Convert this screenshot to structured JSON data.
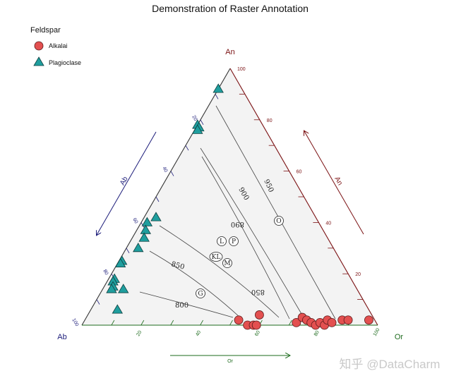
{
  "chart_data": {
    "type": "ternary-scatter",
    "title": "Demonstration of Raster Annotation",
    "legend": {
      "title": "Feldspar",
      "placement": "top-left",
      "entries": [
        {
          "name": "Alkalai",
          "marker": "circle",
          "color": "#e35050"
        },
        {
          "name": "Plagioclase",
          "marker": "triangle",
          "color": "#1f9e9e"
        }
      ]
    },
    "axes": {
      "top": {
        "label": "An",
        "color": "#7b1113",
        "ticks": [
          "20",
          "40",
          "60",
          "80",
          "100"
        ]
      },
      "left": {
        "label": "Ab",
        "color": "#1c1c7a",
        "ticks": [
          "20",
          "40",
          "60",
          "80",
          "100"
        ]
      },
      "right": {
        "label": "Or",
        "color": "#1e6b1e",
        "ticks": [
          "20",
          "40",
          "60",
          "80",
          "100"
        ]
      },
      "range": [
        0,
        100
      ]
    },
    "isotherm_labels": [
      "950",
      "900",
      "890",
      "850",
      "800",
      "850"
    ],
    "background_marks": [
      "L",
      "P",
      "KL",
      "M",
      "O",
      "G"
    ],
    "series": [
      {
        "name": "Plagioclase",
        "points": [
          {
            "an": 92,
            "ab": 8,
            "or": 0
          },
          {
            "an": 78,
            "ab": 22,
            "or": 0
          },
          {
            "an": 77,
            "ab": 22,
            "or": 1
          },
          {
            "an": 76,
            "ab": 23,
            "or": 1
          },
          {
            "an": 42,
            "ab": 54,
            "or": 4
          },
          {
            "an": 40,
            "ab": 58,
            "or": 2
          },
          {
            "an": 37,
            "ab": 60,
            "or": 3
          },
          {
            "an": 34,
            "ab": 62,
            "or": 4
          },
          {
            "an": 30,
            "ab": 66,
            "or": 4
          },
          {
            "an": 25,
            "ab": 74,
            "or": 1
          },
          {
            "an": 24,
            "ab": 75,
            "or": 1
          },
          {
            "an": 18,
            "ab": 80,
            "or": 2
          },
          {
            "an": 17,
            "ab": 81,
            "or": 2
          },
          {
            "an": 15,
            "ab": 82,
            "or": 3
          },
          {
            "an": 14,
            "ab": 83,
            "or": 3
          },
          {
            "an": 14,
            "ab": 79,
            "or": 7
          },
          {
            "an": 6,
            "ab": 85,
            "or": 9
          }
        ]
      },
      {
        "name": "Alkalai",
        "points": [
          {
            "an": 2,
            "ab": 46,
            "or": 52
          },
          {
            "an": 0,
            "ab": 44,
            "or": 56
          },
          {
            "an": 0,
            "ab": 42,
            "or": 58
          },
          {
            "an": 0,
            "ab": 41,
            "or": 59
          },
          {
            "an": 4,
            "ab": 38,
            "or": 58
          },
          {
            "an": 1,
            "ab": 27,
            "or": 72
          },
          {
            "an": 3,
            "ab": 24,
            "or": 73
          },
          {
            "an": 2,
            "ab": 23,
            "or": 75
          },
          {
            "an": 1,
            "ab": 22,
            "or": 77
          },
          {
            "an": 0,
            "ab": 21,
            "or": 79
          },
          {
            "an": 1,
            "ab": 19,
            "or": 80
          },
          {
            "an": 0,
            "ab": 18,
            "or": 82
          },
          {
            "an": 2,
            "ab": 16,
            "or": 82
          },
          {
            "an": 1,
            "ab": 15,
            "or": 84
          },
          {
            "an": 2,
            "ab": 11,
            "or": 87
          },
          {
            "an": 2,
            "ab": 9,
            "or": 89
          },
          {
            "an": 2,
            "ab": 2,
            "or": 96
          }
        ]
      }
    ]
  },
  "watermark": "知乎 @DataCharm"
}
